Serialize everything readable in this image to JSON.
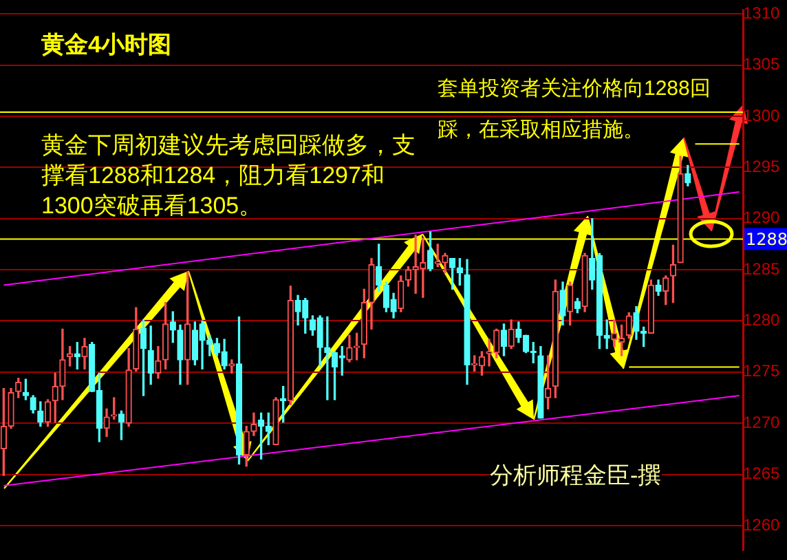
{
  "chart_data": {
    "type": "candlestick",
    "title": "黄金4小时图",
    "annotations": [
      "套单投资者关注价格向1288回踩，在采取相应措施。",
      "黄金下周初建议先考虑回踩做多，支撑看1288和1284，阻力看1297和1300突破再看1305。",
      "分析师程金臣-撰"
    ],
    "categories": [
      null,
      null,
      null,
      null,
      null,
      null,
      null,
      null,
      null,
      null,
      null,
      null,
      null,
      null,
      null,
      null,
      null,
      null,
      null,
      null,
      null,
      null,
      null,
      null,
      null,
      null,
      null,
      null,
      null,
      null,
      null,
      null,
      null,
      null,
      null,
      null,
      null,
      null,
      null,
      null,
      null,
      null,
      null,
      null,
      null,
      null,
      null,
      null,
      null,
      null,
      null,
      null,
      null,
      null,
      null,
      null,
      null,
      null,
      null,
      null,
      null,
      null,
      null,
      null,
      null,
      null,
      null,
      null,
      null,
      null,
      null,
      null,
      null,
      null,
      null,
      null,
      null,
      null,
      null,
      null,
      null,
      null,
      null,
      null,
      null,
      null,
      null,
      null,
      null,
      null,
      null,
      null,
      null,
      null,
      null,
      null,
      null,
      null,
      null,
      null,
      null
    ],
    "ohlc": [
      [
        1267.5,
        1273.4,
        1264.9,
        1269.7
      ],
      [
        1269.7,
        1273.4,
        1269.5,
        1273.0
      ],
      [
        1273.1,
        1274.4,
        1272.5,
        1274.0
      ],
      [
        1273.0,
        1274.3,
        1272.3,
        1272.7
      ],
      [
        1272.5,
        1272.7,
        1271.0,
        1271.3
      ],
      [
        1271.2,
        1272.1,
        1269.7,
        1270.1
      ],
      [
        1270.1,
        1272.3,
        1269.7,
        1272.1
      ],
      [
        1272.2,
        1274.9,
        1270.1,
        1273.6
      ],
      [
        1273.6,
        1279.2,
        1272.3,
        1276.2
      ],
      [
        1276.5,
        1277.5,
        1275.6,
        1276.8
      ],
      [
        1276.8,
        1277.9,
        1275.3,
        1276.5
      ],
      [
        1276.5,
        1278.3,
        1275.3,
        1277.5
      ],
      [
        1277.7,
        1277.9,
        1273.1,
        1273.1
      ],
      [
        1273.2,
        1274.9,
        1268.2,
        1269.5
      ],
      [
        1269.5,
        1271.4,
        1268.7,
        1270.6
      ],
      [
        1270.7,
        1272.5,
        1270.4,
        1270.8
      ],
      [
        1270.9,
        1271.2,
        1268.4,
        1270.1
      ],
      [
        1270.0,
        1277.3,
        1269.7,
        1275.2
      ],
      [
        1275.3,
        1281.3,
        1275.1,
        1279.2
      ],
      [
        1279.3,
        1280.1,
        1272.7,
        1277.3
      ],
      [
        1277.1,
        1279.5,
        1273.8,
        1274.9
      ],
      [
        1274.9,
        1277.5,
        1274.4,
        1276.1
      ],
      [
        1276.2,
        1281.8,
        1275.3,
        1279.7
      ],
      [
        1279.9,
        1280.9,
        1277.9,
        1279.1
      ],
      [
        1279.1,
        1279.6,
        1273.8,
        1276.2
      ],
      [
        1276.2,
        1284.8,
        1273.8,
        1279.7
      ],
      [
        1279.1,
        1279.9,
        1275.7,
        1276.2
      ],
      [
        1279.7,
        1280.0,
        1275.3,
        1278.1
      ],
      [
        1278.1,
        1278.6,
        1276.6,
        1277.7
      ],
      [
        1277.8,
        1278.3,
        1276.6,
        1276.9
      ],
      [
        1277.0,
        1278.2,
        1275.3,
        1275.6
      ],
      [
        1275.6,
        1276.2,
        1274.9,
        1275.8
      ],
      [
        1275.8,
        1280.4,
        1266.0,
        1266.9
      ],
      [
        1266.9,
        1269.7,
        1265.8,
        1269.2
      ],
      [
        1269.2,
        1271.0,
        1268.8,
        1269.9
      ],
      [
        1270.3,
        1271.0,
        1266.5,
        1269.7
      ],
      [
        1269.7,
        1271.0,
        1267.9,
        1269.2
      ],
      [
        1267.9,
        1272.5,
        1267.9,
        1272.3
      ],
      [
        1272.4,
        1273.6,
        1270.1,
        1272.2
      ],
      [
        1272.2,
        1283.4,
        1271.8,
        1282.0
      ],
      [
        1282.0,
        1282.5,
        1279.6,
        1280.9
      ],
      [
        1282.0,
        1282.2,
        1278.8,
        1280.3
      ],
      [
        1280.1,
        1280.5,
        1278.6,
        1279.1
      ],
      [
        1280.3,
        1280.5,
        1275.6,
        1277.4
      ],
      [
        1277.4,
        1280.4,
        1272.3,
        1276.9
      ],
      [
        1276.9,
        1277.0,
        1272.3,
        1275.5
      ],
      [
        1276.6,
        1277.5,
        1274.7,
        1276.4
      ],
      [
        1276.2,
        1278.6,
        1276.0,
        1277.4
      ],
      [
        1277.4,
        1278.8,
        1276.2,
        1277.5
      ],
      [
        1277.7,
        1283.1,
        1276.4,
        1281.8
      ],
      [
        1281.8,
        1286.1,
        1279.2,
        1285.5
      ],
      [
        1285.3,
        1287.5,
        1282.9,
        1283.5
      ],
      [
        1283.5,
        1283.8,
        1280.9,
        1281.3
      ],
      [
        1282.1,
        1282.7,
        1280.3,
        1280.9
      ],
      [
        1281.2,
        1284.4,
        1280.9,
        1283.9
      ],
      [
        1284.0,
        1285.3,
        1283.4,
        1285.0
      ],
      [
        1285.0,
        1288.4,
        1282.7,
        1285.3
      ],
      [
        1285.1,
        1288.1,
        1282.3,
        1285.7
      ],
      [
        1286.9,
        1288.7,
        1284.9,
        1285.1
      ],
      [
        1285.6,
        1287.5,
        1285.3,
        1285.8
      ],
      [
        1285.7,
        1286.6,
        1284.7,
        1286.4
      ],
      [
        1286.1,
        1286.1,
        1283.1,
        1285.2
      ],
      [
        1285.2,
        1286.1,
        1283.5,
        1284.7
      ],
      [
        1284.5,
        1286.0,
        1273.8,
        1275.7
      ],
      [
        1275.7,
        1276.6,
        1275.1,
        1275.8
      ],
      [
        1275.6,
        1277.0,
        1274.7,
        1276.5
      ],
      [
        1276.8,
        1278.2,
        1275.6,
        1277.0
      ],
      [
        1276.9,
        1279.2,
        1276.4,
        1279.1
      ],
      [
        1279.1,
        1279.7,
        1276.6,
        1277.5
      ],
      [
        1277.5,
        1280.1,
        1277.3,
        1279.2
      ],
      [
        1279.2,
        1279.9,
        1277.9,
        1278.4
      ],
      [
        1278.6,
        1278.6,
        1276.9,
        1277.0
      ],
      [
        1277.0,
        1277.9,
        1275.9,
        1276.9
      ],
      [
        1276.6,
        1277.5,
        1270.5,
        1270.5
      ],
      [
        1272.5,
        1276.6,
        1271.4,
        1273.4
      ],
      [
        1273.6,
        1284.0,
        1272.5,
        1282.9
      ],
      [
        1283.0,
        1283.8,
        1279.6,
        1280.5
      ],
      [
        1280.9,
        1283.8,
        1279.6,
        1283.5
      ],
      [
        1281.9,
        1282.2,
        1280.8,
        1281.2
      ],
      [
        1281.4,
        1286.6,
        1280.9,
        1286.4
      ],
      [
        1286.1,
        1290.0,
        1283.1,
        1284.0
      ],
      [
        1286.4,
        1286.6,
        1277.3,
        1278.6
      ],
      [
        1278.6,
        1280.1,
        1277.3,
        1278.3
      ],
      [
        1278.2,
        1280.1,
        1277.5,
        1278.8
      ],
      [
        1277.9,
        1279.6,
        1276.6,
        1278.3
      ],
      [
        1278.6,
        1280.8,
        1278.3,
        1280.5
      ],
      [
        1280.8,
        1281.4,
        1278.2,
        1279.0
      ],
      [
        1279.0,
        1279.4,
        1277.5,
        1278.8
      ],
      [
        1278.8,
        1284.0,
        1278.8,
        1283.5
      ],
      [
        1283.5,
        1284.0,
        1282.5,
        1282.9
      ],
      [
        1282.9,
        1284.4,
        1281.6,
        1284.2
      ],
      [
        1284.4,
        1287.4,
        1281.8,
        1285.5
      ],
      [
        1285.7,
        1296.1,
        1285.7,
        1294.4
      ],
      [
        1294.4,
        1295.2,
        1293.2,
        1293.5
      ],
      null,
      null,
      null,
      null,
      null,
      null,
      null
    ],
    "colors": [
      "#ff5050",
      "#ff5050",
      "#ff5050",
      "#50fcfc",
      "#50fcfc",
      "#50fcfc",
      "#ff5050",
      "#ff5050",
      "#ff5050",
      "#ff5050",
      "#50fcfc",
      "#ff5050",
      "#50fcfc",
      "#50fcfc",
      "#ff5050",
      "#ff5050",
      "#50fcfc",
      "#ff5050",
      "#ff5050",
      "#50fcfc",
      "#50fcfc",
      "#ff5050",
      "#ff5050",
      "#50fcfc",
      "#50fcfc",
      "#ff5050",
      "#50fcfc",
      "#50fcfc",
      "#50fcfc",
      "#50fcfc",
      "#50fcfc",
      "#ff5050",
      "#50fcfc",
      "#ff5050",
      "#ff5050",
      "#50fcfc",
      "#50fcfc",
      "#ff5050",
      "#50fcfc",
      "#ff5050",
      "#50fcfc",
      "#50fcfc",
      "#50fcfc",
      "#50fcfc",
      "#50fcfc",
      "#50fcfc",
      "#50fcfc",
      "#ff5050",
      "#ff5050",
      "#ff5050",
      "#ff5050",
      "#50fcfc",
      "#50fcfc",
      "#50fcfc",
      "#ff5050",
      "#ff5050",
      "#ff5050",
      "#ff5050",
      "#50fcfc",
      "#ff5050",
      "#ff5050",
      "#50fcfc",
      "#50fcfc",
      "#50fcfc",
      "#ff5050",
      "#ff5050",
      "#ff5050",
      "#ff5050",
      "#50fcfc",
      "#ff5050",
      "#50fcfc",
      "#50fcfc",
      "#50fcfc",
      "#50fcfc",
      "#ff5050",
      "#ff5050",
      "#50fcfc",
      "#ff5050",
      "#50fcfc",
      "#ff5050",
      "#50fcfc",
      "#50fcfc",
      "#50fcfc",
      "#ff5050",
      "#ff5050",
      "#ff5050",
      "#50fcfc",
      "#50fcfc",
      "#ff5050",
      "#50fcfc",
      "#ff5050",
      "#ff5050",
      "#ff5050",
      "#50fcfc",
      null,
      null,
      null,
      null,
      null,
      null,
      null
    ],
    "series": [
      {
        "type": "line",
        "color": "#ff00ff",
        "values": [
          1263.9,
          null,
          null,
          null,
          null,
          null,
          null,
          null,
          null,
          null,
          null,
          null,
          null,
          null,
          null,
          null,
          null,
          null,
          null,
          null,
          null,
          null,
          null,
          null,
          null,
          null,
          null,
          null,
          null,
          null,
          null,
          null,
          null,
          null,
          null,
          null,
          null,
          null,
          null,
          null,
          null,
          null,
          null,
          null,
          null,
          null,
          null,
          null,
          null,
          null,
          null,
          null,
          null,
          null,
          null,
          null,
          null,
          null,
          null,
          null,
          null,
          null,
          null,
          null,
          null,
          null,
          null,
          null,
          null,
          null,
          null,
          null,
          null,
          null,
          null,
          null,
          null,
          null,
          null,
          null,
          null,
          null,
          null,
          null,
          null,
          null,
          null,
          null,
          null,
          null,
          null,
          null,
          null,
          null,
          null,
          null,
          null,
          null,
          null,
          null,
          1272.7
        ]
      },
      {
        "type": "line",
        "color": "#ff00ff",
        "values": [
          1283.5,
          null,
          null,
          null,
          null,
          null,
          null,
          null,
          null,
          null,
          null,
          null,
          null,
          null,
          null,
          null,
          null,
          null,
          null,
          null,
          null,
          null,
          null,
          null,
          null,
          null,
          null,
          null,
          null,
          null,
          null,
          null,
          null,
          null,
          null,
          null,
          null,
          null,
          null,
          null,
          null,
          null,
          null,
          null,
          null,
          null,
          null,
          null,
          null,
          null,
          null,
          null,
          null,
          null,
          null,
          null,
          null,
          null,
          null,
          null,
          null,
          null,
          null,
          null,
          null,
          null,
          null,
          null,
          null,
          null,
          null,
          null,
          null,
          null,
          null,
          null,
          null,
          null,
          null,
          null,
          null,
          null,
          null,
          null,
          null,
          null,
          null,
          null,
          null,
          null,
          null,
          null,
          null,
          null,
          null,
          null,
          null,
          null,
          null,
          null,
          1292.6
        ]
      },
      {
        "type": "line",
        "color": "#ffff00",
        "values": [
          null,
          null,
          null,
          null,
          null,
          null,
          null,
          null,
          null,
          null,
          null,
          null,
          null,
          null,
          null,
          null,
          null,
          null,
          null,
          null,
          null,
          null,
          null,
          null,
          null,
          null,
          null,
          null,
          null,
          null,
          null,
          null,
          null,
          null,
          null,
          null,
          null,
          null,
          null,
          null,
          null,
          null,
          null,
          null,
          null,
          null,
          null,
          null,
          null,
          null,
          null,
          null,
          null,
          null,
          null,
          null,
          null,
          null,
          null,
          null,
          null,
          null,
          null,
          null,
          null,
          null,
          null,
          null,
          null,
          null,
          null,
          null,
          null,
          null,
          null,
          null,
          null,
          null,
          null,
          null,
          null,
          null,
          null,
          null,
          null,
          1275.5,
          null,
          null,
          null,
          null,
          null,
          null,
          null,
          null,
          null,
          null,
          null,
          null,
          null,
          null,
          1275.5
        ]
      },
      {
        "type": "line",
        "color": "#ffff00",
        "values": [
          null,
          null,
          null,
          null,
          null,
          null,
          null,
          null,
          null,
          null,
          null,
          null,
          null,
          null,
          null,
          null,
          null,
          null,
          null,
          null,
          null,
          null,
          null,
          null,
          null,
          null,
          null,
          null,
          null,
          null,
          null,
          null,
          null,
          null,
          null,
          null,
          null,
          null,
          null,
          null,
          null,
          null,
          null,
          null,
          null,
          null,
          null,
          null,
          null,
          null,
          null,
          null,
          null,
          null,
          null,
          null,
          null,
          null,
          null,
          null,
          null,
          null,
          null,
          null,
          null,
          null,
          null,
          null,
          null,
          null,
          null,
          null,
          null,
          null,
          null,
          null,
          null,
          null,
          null,
          null,
          null,
          null,
          null,
          null,
          null,
          null,
          null,
          null,
          null,
          null,
          null,
          null,
          null,
          null,
          1297.3,
          null,
          null,
          null,
          null,
          null,
          1297.3
        ]
      }
    ],
    "ref_lines": [
      {
        "axis": "y",
        "value": 1300.4,
        "color": "#ffff00"
      },
      {
        "axis": "y",
        "value": 1288,
        "label": "1288",
        "color": "#ffff00"
      }
    ],
    "ylim": [
      1257.6,
      1310.4
    ],
    "yticks": [
      1260,
      1265,
      1270,
      1275,
      1280,
      1285,
      1290,
      1295,
      1300,
      1305,
      1310
    ],
    "grid": "y",
    "tick_labels": "y",
    "legend": false
  }
}
